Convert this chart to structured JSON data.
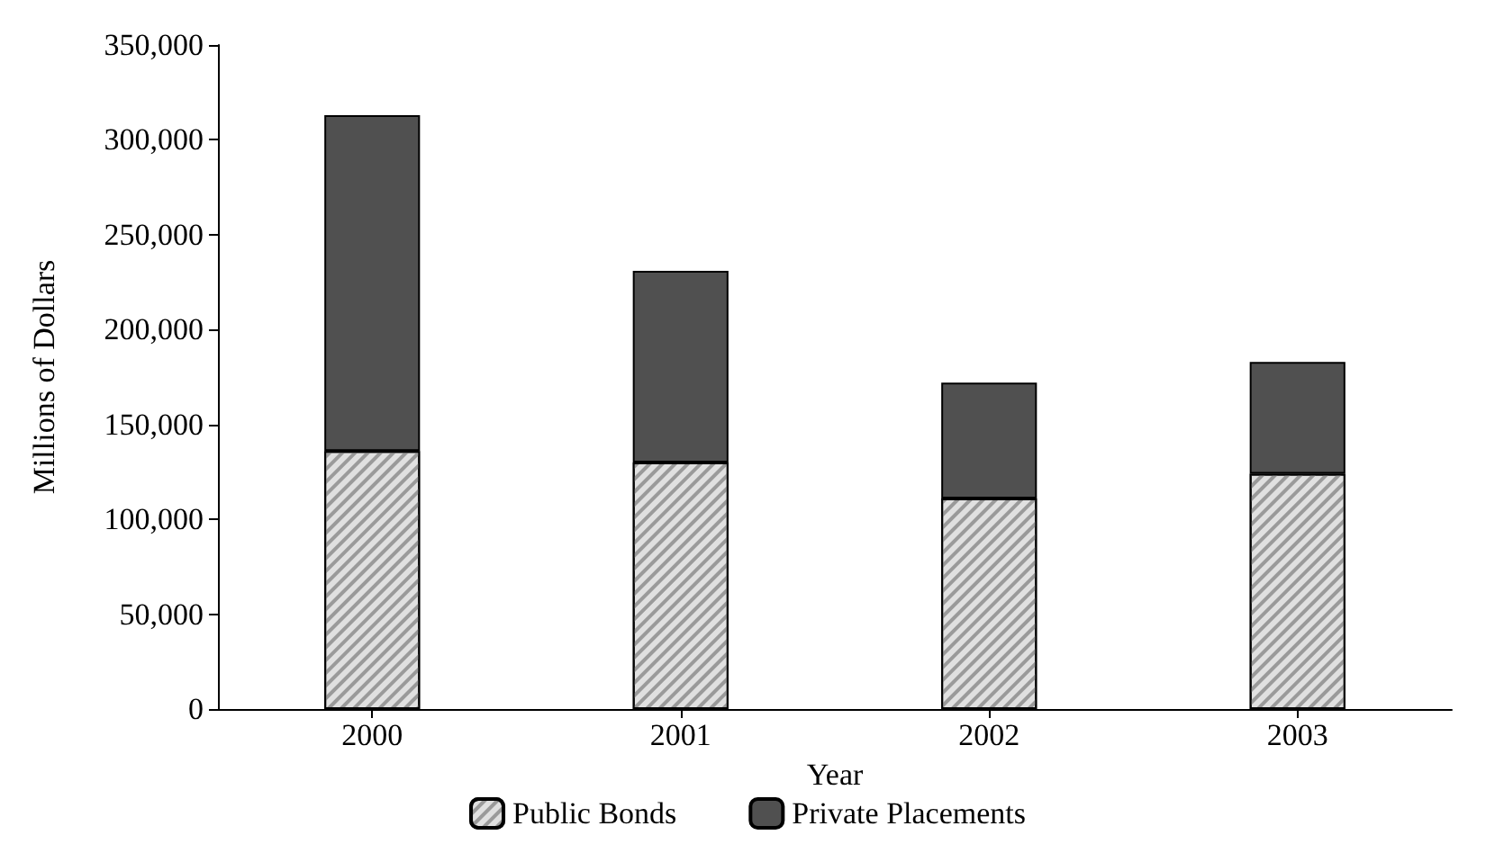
{
  "chart_data": {
    "type": "bar",
    "stacked": true,
    "xlabel": "Year",
    "ylabel": "Millions of Dollars",
    "categories": [
      "2000",
      "2001",
      "2002",
      "2003"
    ],
    "series": [
      {
        "name": "Public Bonds",
        "color": "#e0e0e0",
        "values": [
          136000,
          130000,
          111000,
          124000
        ]
      },
      {
        "name": "Private Placements",
        "color": "#505050",
        "values": [
          177000,
          101000,
          61000,
          59000
        ]
      }
    ],
    "ylim": [
      0,
      350000
    ],
    "yticks": [
      {
        "value": 0,
        "label": "0"
      },
      {
        "value": 50000,
        "label": "50,000"
      },
      {
        "value": 100000,
        "label": "100,000"
      },
      {
        "value": 150000,
        "label": "150,000"
      },
      {
        "value": 200000,
        "label": "200,000"
      },
      {
        "value": 250000,
        "label": "250,000"
      },
      {
        "value": 300000,
        "label": "300,000"
      },
      {
        "value": 350000,
        "label": "350,000"
      }
    ],
    "grid": false,
    "legend": "bottom"
  }
}
